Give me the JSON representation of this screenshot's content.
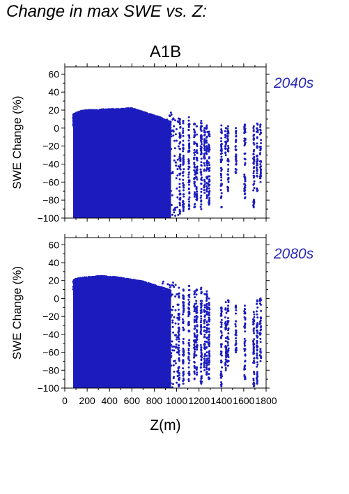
{
  "heading": "Change in max SWE vs. Z:",
  "scenario": "A1B",
  "colors": {
    "points": "#1c1cbe",
    "label": "#2828b4",
    "axis": "#000000"
  },
  "chart_data": [
    {
      "type": "scatter",
      "title": "A1B",
      "period_label": "2040s",
      "xlabel": "",
      "ylabel": "SWE Change (%)",
      "xlim": [
        0,
        1800
      ],
      "ylim": [
        -100,
        68
      ],
      "yticks": [
        -100,
        -80,
        -60,
        -40,
        -20,
        0,
        20,
        40,
        60
      ],
      "xticks": [],
      "envelope": {
        "x": [
          75,
          100,
          150,
          200,
          250,
          300,
          350,
          400,
          450,
          500,
          550,
          600,
          650,
          700,
          750,
          800,
          850,
          900,
          950
        ],
        "ymax": [
          15,
          17,
          19,
          20,
          20,
          20,
          21,
          21,
          21,
          21,
          22,
          22,
          20,
          18,
          16,
          14,
          12,
          9,
          7
        ],
        "ymin": [
          -100,
          -100,
          -100,
          -100,
          -100,
          -100,
          -100,
          -100,
          -100,
          -100,
          -100,
          -100,
          -100,
          -100,
          -100,
          -100,
          -100,
          -100,
          -100
        ]
      },
      "columns": [
        {
          "x": 1030,
          "ymax": 10,
          "ymin": -95
        },
        {
          "x": 1060,
          "ymax": 8,
          "ymin": -92
        },
        {
          "x": 1110,
          "ymax": 12,
          "ymin": -90
        },
        {
          "x": 1160,
          "ymax": 5,
          "ymin": -88
        },
        {
          "x": 1180,
          "ymax": 2,
          "ymin": -80
        },
        {
          "x": 1220,
          "ymax": 8,
          "ymin": -90
        },
        {
          "x": 1250,
          "ymax": 0,
          "ymin": -72
        },
        {
          "x": 1270,
          "ymax": 3,
          "ymin": -78
        },
        {
          "x": 1290,
          "ymax": -4,
          "ymin": -85
        },
        {
          "x": 1400,
          "ymax": 3,
          "ymin": -88
        },
        {
          "x": 1440,
          "ymax": 0,
          "ymin": -30
        },
        {
          "x": 1460,
          "ymax": 2,
          "ymin": -70
        },
        {
          "x": 1530,
          "ymax": 0,
          "ymin": -50
        },
        {
          "x": 1610,
          "ymax": 4,
          "ymin": -78
        },
        {
          "x": 1690,
          "ymax": 2,
          "ymin": -88
        },
        {
          "x": 1720,
          "ymax": 5,
          "ymin": -70
        },
        {
          "x": 1750,
          "ymax": 4,
          "ymin": -60
        }
      ]
    },
    {
      "type": "scatter",
      "title": "",
      "period_label": "2080s",
      "xlabel": "Z(m)",
      "ylabel": "SWE Change (%)",
      "xlim": [
        0,
        1800
      ],
      "ylim": [
        -100,
        68
      ],
      "yticks": [
        -100,
        -80,
        -60,
        -40,
        -20,
        0,
        20,
        40,
        60
      ],
      "xticks": [
        0,
        200,
        400,
        600,
        800,
        1000,
        1200,
        1400,
        1600,
        1800
      ],
      "envelope": {
        "x": [
          75,
          100,
          150,
          200,
          250,
          300,
          350,
          400,
          450,
          500,
          550,
          600,
          650,
          700,
          750,
          800,
          850,
          900,
          950
        ],
        "ymax": [
          20,
          22,
          23,
          24,
          24,
          25,
          25,
          24,
          24,
          23,
          22,
          21,
          20,
          19,
          17,
          15,
          13,
          11,
          9
        ],
        "ymin": [
          -100,
          -100,
          -100,
          -100,
          -100,
          -100,
          -100,
          -100,
          -100,
          -100,
          -100,
          -100,
          -100,
          -100,
          -100,
          -100,
          -100,
          -100,
          -100
        ]
      },
      "columns": [
        {
          "x": 1020,
          "ymax": 12,
          "ymin": -98
        },
        {
          "x": 1060,
          "ymax": 10,
          "ymin": -95
        },
        {
          "x": 1110,
          "ymax": 14,
          "ymin": -92
        },
        {
          "x": 1160,
          "ymax": 8,
          "ymin": -90
        },
        {
          "x": 1180,
          "ymax": 10,
          "ymin": -85
        },
        {
          "x": 1220,
          "ymax": 12,
          "ymin": -95
        },
        {
          "x": 1250,
          "ymax": 5,
          "ymin": -80
        },
        {
          "x": 1270,
          "ymax": 8,
          "ymin": -85
        },
        {
          "x": 1290,
          "ymax": 0,
          "ymin": -90
        },
        {
          "x": 1400,
          "ymax": -10,
          "ymin": -98
        },
        {
          "x": 1440,
          "ymax": -4,
          "ymin": -80
        },
        {
          "x": 1460,
          "ymax": -2,
          "ymin": -75
        },
        {
          "x": 1530,
          "ymax": -8,
          "ymin": -60
        },
        {
          "x": 1610,
          "ymax": -8,
          "ymin": -90
        },
        {
          "x": 1690,
          "ymax": -15,
          "ymin": -98
        },
        {
          "x": 1720,
          "ymax": -2,
          "ymin": -95
        },
        {
          "x": 1750,
          "ymax": 0,
          "ymin": -70
        }
      ]
    }
  ]
}
